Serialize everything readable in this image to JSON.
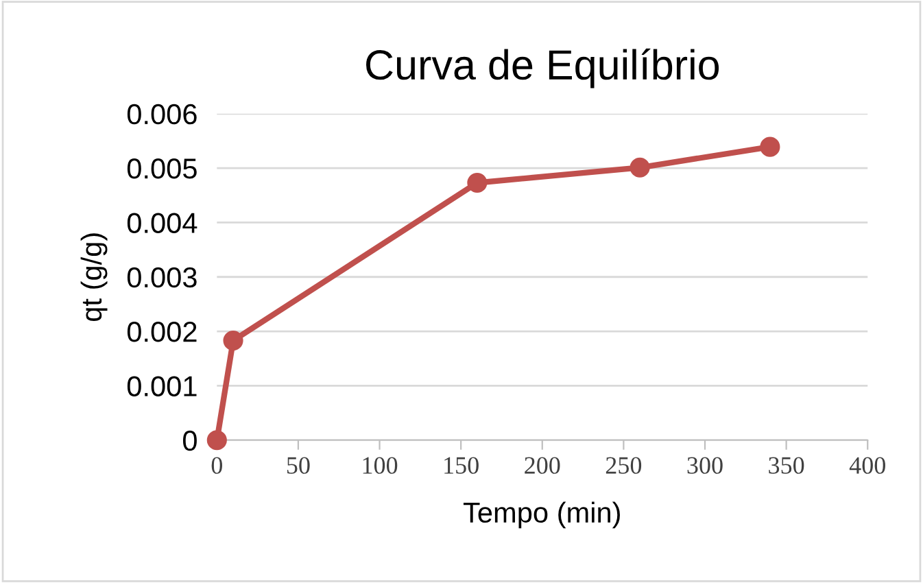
{
  "chart_data": {
    "type": "line",
    "title": "Curva de Equilíbrio",
    "xlabel": "Tempo (min)",
    "ylabel": "qt (g/g)",
    "series": [
      {
        "color": "#c0504d",
        "x": [
          0,
          10,
          160,
          260,
          340
        ],
        "values": [
          0,
          0.00183,
          0.00473,
          0.00501,
          0.00539
        ]
      }
    ],
    "xlim": [
      0,
      400
    ],
    "xticks": [
      0,
      50,
      100,
      150,
      200,
      250,
      300,
      350,
      400
    ],
    "ylim": [
      0,
      0.006
    ],
    "yticks": [
      0,
      0.001,
      0.002,
      0.003,
      0.004,
      0.005,
      0.006
    ],
    "grid": "y",
    "marker": "circle",
    "line_style": "solid"
  }
}
